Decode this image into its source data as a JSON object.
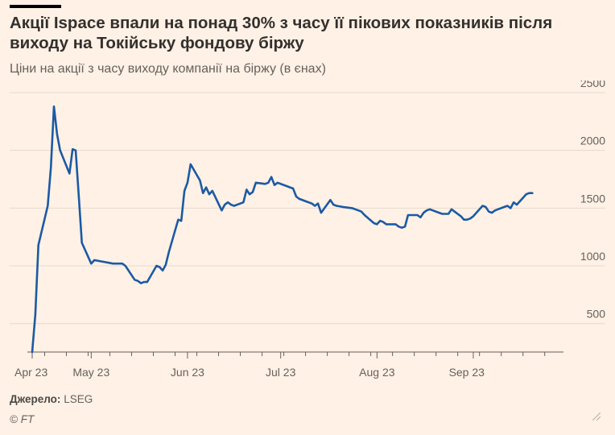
{
  "header": {
    "title": "Акції Ispace впали на понад 30% з часу її пікових показників після виходу на Токійську фондову біржу",
    "subtitle": "Ціни на акції з часу виходу компанії на біржу (в єнах)"
  },
  "footer": {
    "source_label": "Джерело:",
    "source_value": "LSEG",
    "credit": "© FT"
  },
  "colors": {
    "background": "#fff1e5",
    "line": "#1b5aa4",
    "grid": "#e6d9ce",
    "axis": "#66605c"
  },
  "chart_data": {
    "type": "line",
    "title": "Акції Ispace впали на понад 30% з часу її пікових показників після виходу на Токійську фондову біржу",
    "subtitle": "Ціни на акції з часу виходу компанії на біржу (в єнах)",
    "xlabel": "",
    "ylabel": "",
    "y_axis_side": "right",
    "ylim": [
      254,
      2500
    ],
    "yticks": [
      500,
      1000,
      1500,
      2000,
      2500
    ],
    "xlim": [
      "2023-04-12",
      "2023-09-29"
    ],
    "xticks": [
      {
        "date": "2023-04-12",
        "label": "Apr 23"
      },
      {
        "date": "2023-05-01",
        "label": "May 23"
      },
      {
        "date": "2023-06-01",
        "label": "Jun 23"
      },
      {
        "date": "2023-07-01",
        "label": "Jul 23"
      },
      {
        "date": "2023-08-01",
        "label": "Aug 23"
      },
      {
        "date": "2023-09-01",
        "label": "Sep 23"
      }
    ],
    "grid": true,
    "series": [
      {
        "values": [
          [
            "2023-04-12",
            254
          ],
          [
            "2023-04-13",
            580
          ],
          [
            "2023-04-14",
            1180
          ],
          [
            "2023-04-17",
            1520
          ],
          [
            "2023-04-18",
            1850
          ],
          [
            "2023-04-19",
            2380
          ],
          [
            "2023-04-20",
            2140
          ],
          [
            "2023-04-21",
            2000
          ],
          [
            "2023-04-24",
            1800
          ],
          [
            "2023-04-25",
            2010
          ],
          [
            "2023-04-26",
            2000
          ],
          [
            "2023-04-27",
            1600
          ],
          [
            "2023-04-28",
            1200
          ],
          [
            "2023-05-01",
            1020
          ],
          [
            "2023-05-02",
            1050
          ],
          [
            "2023-05-08",
            1020
          ],
          [
            "2023-05-11",
            1020
          ],
          [
            "2023-05-12",
            1000
          ],
          [
            "2023-05-15",
            880
          ],
          [
            "2023-05-16",
            870
          ],
          [
            "2023-05-17",
            850
          ],
          [
            "2023-05-18",
            860
          ],
          [
            "2023-05-19",
            860
          ],
          [
            "2023-05-22",
            1000
          ],
          [
            "2023-05-23",
            990
          ],
          [
            "2023-05-24",
            960
          ],
          [
            "2023-05-25",
            1010
          ],
          [
            "2023-05-26",
            1120
          ],
          [
            "2023-05-29",
            1400
          ],
          [
            "2023-05-30",
            1390
          ],
          [
            "2023-05-31",
            1650
          ],
          [
            "2023-06-01",
            1720
          ],
          [
            "2023-06-02",
            1880
          ],
          [
            "2023-06-05",
            1740
          ],
          [
            "2023-06-06",
            1630
          ],
          [
            "2023-06-07",
            1680
          ],
          [
            "2023-06-08",
            1620
          ],
          [
            "2023-06-09",
            1650
          ],
          [
            "2023-06-12",
            1480
          ],
          [
            "2023-06-13",
            1530
          ],
          [
            "2023-06-14",
            1550
          ],
          [
            "2023-06-15",
            1530
          ],
          [
            "2023-06-16",
            1520
          ],
          [
            "2023-06-19",
            1550
          ],
          [
            "2023-06-20",
            1660
          ],
          [
            "2023-06-21",
            1620
          ],
          [
            "2023-06-22",
            1640
          ],
          [
            "2023-06-23",
            1720
          ],
          [
            "2023-06-26",
            1710
          ],
          [
            "2023-06-27",
            1720
          ],
          [
            "2023-06-28",
            1770
          ],
          [
            "2023-06-29",
            1700
          ],
          [
            "2023-06-30",
            1720
          ],
          [
            "2023-07-03",
            1690
          ],
          [
            "2023-07-04",
            1680
          ],
          [
            "2023-07-05",
            1670
          ],
          [
            "2023-07-06",
            1600
          ],
          [
            "2023-07-07",
            1580
          ],
          [
            "2023-07-10",
            1550
          ],
          [
            "2023-07-11",
            1540
          ],
          [
            "2023-07-12",
            1520
          ],
          [
            "2023-07-13",
            1540
          ],
          [
            "2023-07-14",
            1460
          ],
          [
            "2023-07-17",
            1570
          ],
          [
            "2023-07-18",
            1530
          ],
          [
            "2023-07-19",
            1520
          ],
          [
            "2023-07-21",
            1510
          ],
          [
            "2023-07-24",
            1500
          ],
          [
            "2023-07-25",
            1490
          ],
          [
            "2023-07-26",
            1480
          ],
          [
            "2023-07-27",
            1470
          ],
          [
            "2023-07-28",
            1440
          ],
          [
            "2023-07-31",
            1370
          ],
          [
            "2023-08-01",
            1360
          ],
          [
            "2023-08-02",
            1390
          ],
          [
            "2023-08-03",
            1380
          ],
          [
            "2023-08-04",
            1360
          ],
          [
            "2023-08-07",
            1360
          ],
          [
            "2023-08-08",
            1340
          ],
          [
            "2023-08-09",
            1330
          ],
          [
            "2023-08-10",
            1340
          ],
          [
            "2023-08-11",
            1440
          ],
          [
            "2023-08-14",
            1440
          ],
          [
            "2023-08-15",
            1420
          ],
          [
            "2023-08-16",
            1460
          ],
          [
            "2023-08-17",
            1480
          ],
          [
            "2023-08-18",
            1490
          ],
          [
            "2023-08-21",
            1460
          ],
          [
            "2023-08-22",
            1450
          ],
          [
            "2023-08-23",
            1450
          ],
          [
            "2023-08-24",
            1450
          ],
          [
            "2023-08-25",
            1490
          ],
          [
            "2023-08-28",
            1430
          ],
          [
            "2023-08-29",
            1400
          ],
          [
            "2023-08-30",
            1400
          ],
          [
            "2023-08-31",
            1410
          ],
          [
            "2023-09-01",
            1430
          ],
          [
            "2023-09-04",
            1520
          ],
          [
            "2023-09-05",
            1510
          ],
          [
            "2023-09-06",
            1470
          ],
          [
            "2023-09-07",
            1460
          ],
          [
            "2023-09-08",
            1480
          ],
          [
            "2023-09-11",
            1510
          ],
          [
            "2023-09-12",
            1520
          ],
          [
            "2023-09-13",
            1500
          ],
          [
            "2023-09-14",
            1550
          ],
          [
            "2023-09-15",
            1530
          ],
          [
            "2023-09-18",
            1620
          ],
          [
            "2023-09-19",
            1630
          ],
          [
            "2023-09-20",
            1630
          ]
        ]
      }
    ]
  }
}
